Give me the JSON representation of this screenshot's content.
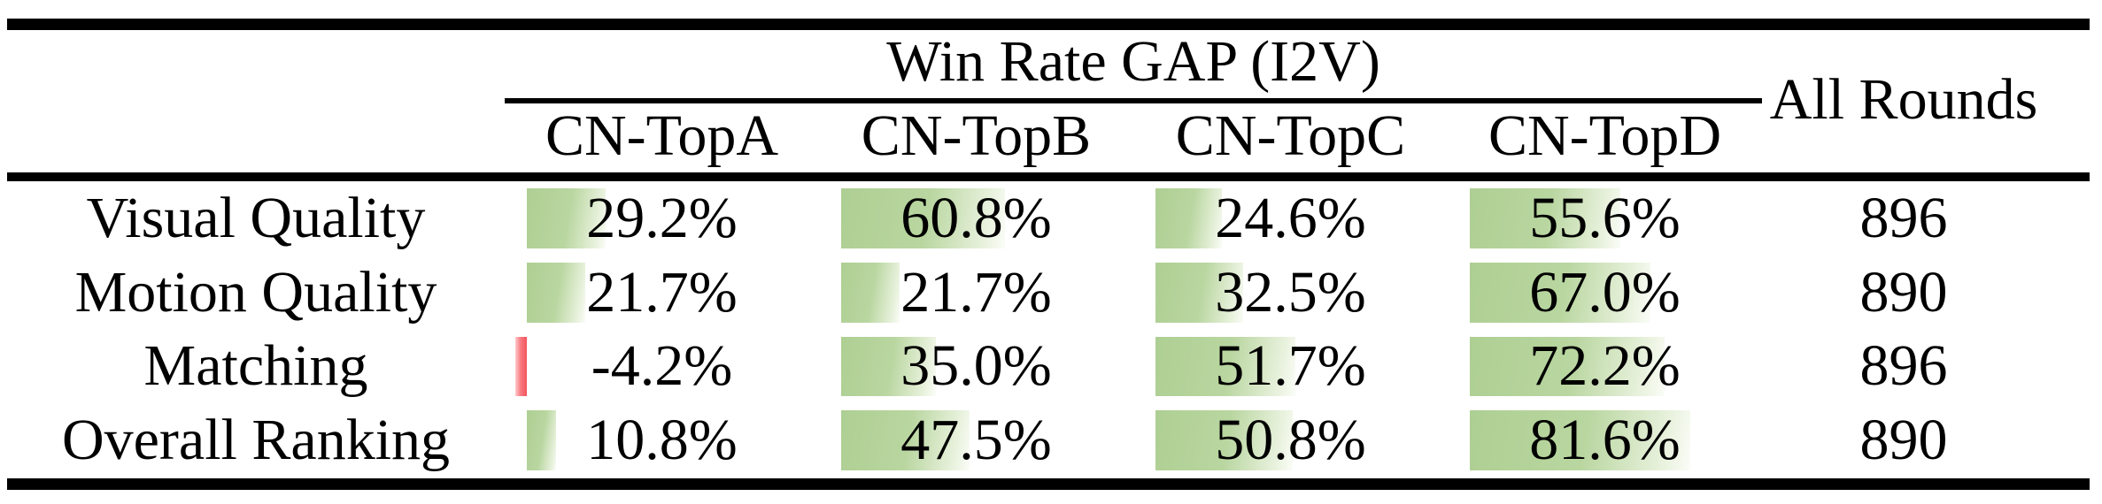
{
  "table": {
    "group_header": "Win Rate GAP (I2V)",
    "all_rounds_header": "All Rounds",
    "columns": [
      "CN-TopA",
      "CN-TopB",
      "CN-TopC",
      "CN-TopD"
    ],
    "rows": [
      {
        "label": "Visual Quality",
        "values": [
          {
            "text": "29.2%",
            "pct": 29.2
          },
          {
            "text": "60.8%",
            "pct": 60.8
          },
          {
            "text": "24.6%",
            "pct": 24.6
          },
          {
            "text": "55.6%",
            "pct": 55.6
          }
        ],
        "rounds": "896"
      },
      {
        "label": "Motion Quality",
        "values": [
          {
            "text": "21.7%",
            "pct": 21.7
          },
          {
            "text": "21.7%",
            "pct": 21.7
          },
          {
            "text": "32.5%",
            "pct": 32.5
          },
          {
            "text": "67.0%",
            "pct": 67.0
          }
        ],
        "rounds": "890"
      },
      {
        "label": "Matching",
        "values": [
          {
            "text": "-4.2%",
            "pct": -4.2
          },
          {
            "text": "35.0%",
            "pct": 35.0
          },
          {
            "text": "51.7%",
            "pct": 51.7
          },
          {
            "text": "72.2%",
            "pct": 72.2
          }
        ],
        "rounds": "896"
      },
      {
        "label": "Overall Ranking",
        "values": [
          {
            "text": "10.8%",
            "pct": 10.8
          },
          {
            "text": "47.5%",
            "pct": 47.5
          },
          {
            "text": "50.8%",
            "pct": 50.8
          },
          {
            "text": "81.6%",
            "pct": 81.6
          }
        ],
        "rounds": "890"
      }
    ]
  },
  "colors": {
    "bar_positive": "#aecf93",
    "bar_negative": "#f2545c",
    "rule": "#000000",
    "background": "#ffffff"
  },
  "chart_data": {
    "type": "table",
    "title": "Win Rate GAP (I2V)",
    "row_labels": [
      "Visual Quality",
      "Motion Quality",
      "Matching",
      "Overall Ranking"
    ],
    "series": [
      {
        "name": "CN-TopA",
        "values": [
          29.2,
          21.7,
          -4.2,
          10.8
        ]
      },
      {
        "name": "CN-TopB",
        "values": [
          60.8,
          21.7,
          35.0,
          47.5
        ]
      },
      {
        "name": "CN-TopC",
        "values": [
          24.6,
          32.5,
          51.7,
          50.8
        ]
      },
      {
        "name": "CN-TopD",
        "values": [
          55.6,
          67.0,
          72.2,
          81.6
        ]
      }
    ],
    "all_rounds": [
      896,
      890,
      896,
      890
    ],
    "unit": "percent",
    "bar_scale": "cell data bars, 100% ≈ full column width"
  }
}
